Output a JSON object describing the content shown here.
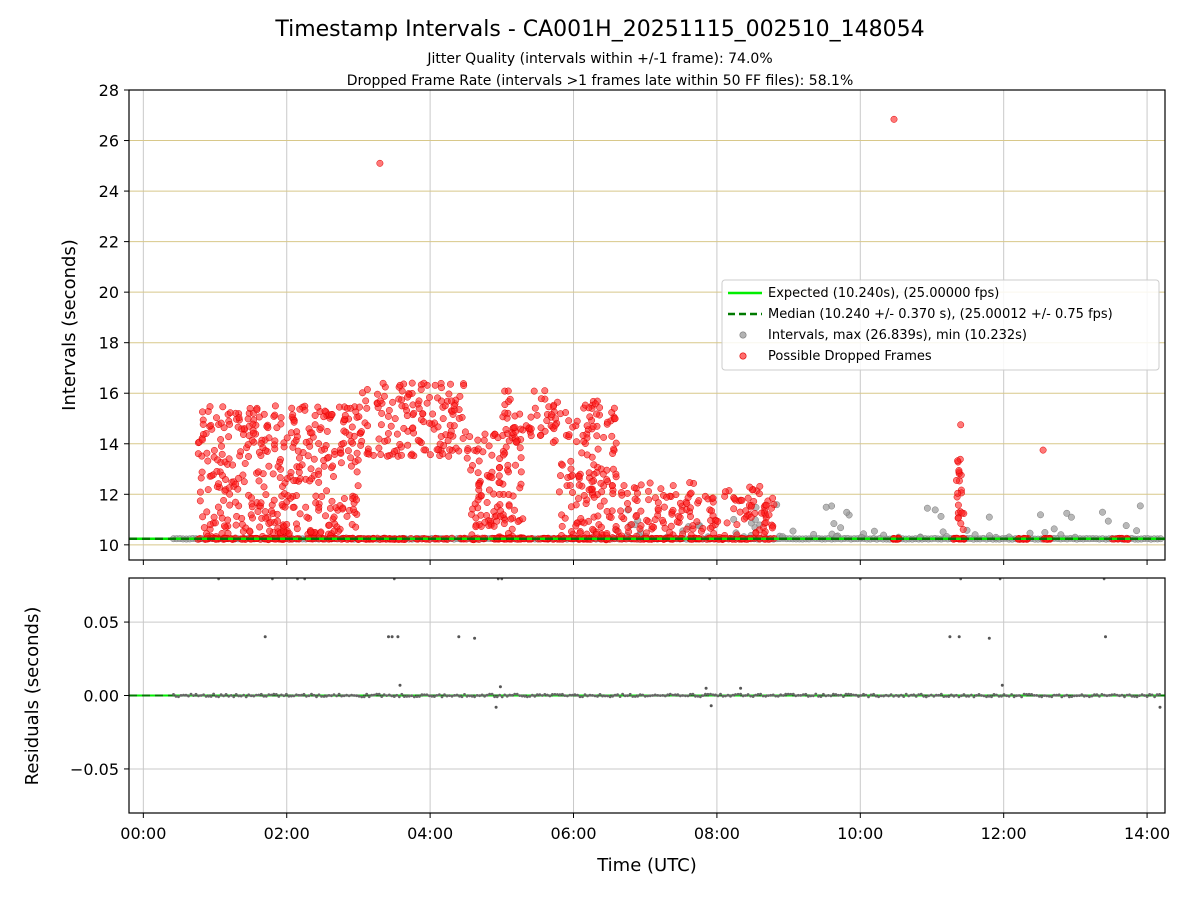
{
  "chart_data": [
    {
      "type": "scatter",
      "panel": "intervals",
      "title": "Timestamp Intervals - CA001H_20251115_002510_148054",
      "subtitle_lines": [
        "Jitter Quality (intervals within +/-1 frame): 74.0%",
        "Dropped Frame Rate (intervals >1 frames late within 50 FF files): 58.1%"
      ],
      "xlabel": "",
      "ylabel": "Intervals (seconds)",
      "xlim_hours": [
        -0.2,
        14.25
      ],
      "ylim": [
        9.4,
        28
      ],
      "yticks": [
        10,
        12,
        14,
        16,
        18,
        20,
        22,
        24,
        26,
        28
      ],
      "ytick_labels": [
        "10",
        "12",
        "14",
        "16",
        "18",
        "20",
        "22",
        "24",
        "26",
        "28"
      ],
      "grid": true,
      "legend_position": "center-right",
      "series": [
        {
          "name": "Expected (10.240s), (25.00000 fps)",
          "kind": "hline",
          "value": 10.24,
          "color": "#00ee00",
          "style": "solid"
        },
        {
          "name": "Median (10.240 +/- 0.370 s), (25.00012 +/- 0.75 fps)",
          "kind": "hline",
          "value": 10.24,
          "color": "#007a00",
          "style": "dashed"
        },
        {
          "name": "Intervals, max (26.839s), min (10.232s)",
          "kind": "scatter",
          "color": "#9a9a9a"
        },
        {
          "name": "Possible Dropped Frames",
          "kind": "scatter",
          "color": "#ff2020"
        }
      ],
      "notable_points": [
        {
          "x_hours": 3.3,
          "y": 25.1,
          "series": "Possible Dropped Frames"
        },
        {
          "x_hours": 10.47,
          "y": 26.84,
          "series": "Possible Dropped Frames"
        },
        {
          "x_hours": 11.4,
          "y": 14.75,
          "series": "Possible Dropped Frames"
        },
        {
          "x_hours": 12.55,
          "y": 13.75,
          "series": "Possible Dropped Frames"
        },
        {
          "x_hours": 3.75,
          "y": 16.4,
          "series": "Possible Dropped Frames"
        },
        {
          "x_hours": 5.6,
          "y": 16.1,
          "series": "Possible Dropped Frames"
        }
      ],
      "dense_regions": [
        {
          "x_range_hours": [
            0.75,
            3.0
          ],
          "y_range": [
            10.2,
            15.5
          ],
          "series": "Possible Dropped Frames"
        },
        {
          "x_range_hours": [
            3.0,
            4.5
          ],
          "y_range": [
            13.5,
            16.4
          ],
          "series": "Possible Dropped Frames"
        },
        {
          "x_range_hours": [
            4.5,
            5.3
          ],
          "y_range": [
            10.2,
            14.5
          ],
          "series": "Possible Dropped Frames"
        },
        {
          "x_range_hours": [
            5.0,
            5.8
          ],
          "y_range": [
            14.0,
            16.1
          ],
          "series": "Possible Dropped Frames"
        },
        {
          "x_range_hours": [
            5.8,
            6.6
          ],
          "y_range": [
            10.2,
            15.8
          ],
          "series": "Possible Dropped Frames"
        },
        {
          "x_range_hours": [
            6.6,
            8.8
          ],
          "y_range": [
            10.2,
            12.5
          ],
          "series": "Possible Dropped Frames"
        },
        {
          "x_range_hours": [
            8.8,
            14.2
          ],
          "y_range": [
            10.2,
            11.6
          ],
          "series": "Intervals, max (26.839s), min (10.232s)"
        }
      ]
    },
    {
      "type": "scatter",
      "panel": "residuals",
      "xlabel": "Time (UTC)",
      "ylabel": "Residuals (seconds)",
      "xlim_hours": [
        -0.2,
        14.25
      ],
      "ylim": [
        -0.08,
        0.08
      ],
      "yticks": [
        -0.05,
        0.0,
        0.05
      ],
      "ytick_labels": [
        "−0.05",
        "0.00",
        "0.05"
      ],
      "xticks_hours": [
        0,
        2,
        4,
        6,
        8,
        10,
        12,
        14
      ],
      "xtick_labels": [
        "00:00",
        "02:00",
        "04:00",
        "06:00",
        "08:00",
        "10:00",
        "12:00",
        "14:00"
      ],
      "grid": true,
      "series": [
        {
          "name": "Residuals",
          "kind": "scatter",
          "color": "#555555"
        },
        {
          "name": "Zero line",
          "kind": "hline",
          "value": 0.0,
          "color": "#00ee00",
          "style": "dashed"
        }
      ],
      "notable_points": [
        {
          "x_hours": 1.7,
          "y": 0.04
        },
        {
          "x_hours": 3.42,
          "y": 0.04
        },
        {
          "x_hours": 3.47,
          "y": 0.04
        },
        {
          "x_hours": 3.55,
          "y": 0.04
        },
        {
          "x_hours": 4.4,
          "y": 0.04
        },
        {
          "x_hours": 4.62,
          "y": 0.039
        },
        {
          "x_hours": 11.25,
          "y": 0.04
        },
        {
          "x_hours": 11.38,
          "y": 0.04
        },
        {
          "x_hours": 11.8,
          "y": 0.039
        },
        {
          "x_hours": 13.42,
          "y": 0.04
        },
        {
          "x_hours": 3.58,
          "y": 0.007
        },
        {
          "x_hours": 4.98,
          "y": 0.006
        },
        {
          "x_hours": 4.92,
          "y": -0.008
        },
        {
          "x_hours": 7.85,
          "y": 0.005
        },
        {
          "x_hours": 7.92,
          "y": -0.007
        },
        {
          "x_hours": 8.33,
          "y": 0.005
        },
        {
          "x_hours": 11.98,
          "y": 0.007
        },
        {
          "x_hours": 14.18,
          "y": -0.008
        }
      ]
    }
  ]
}
